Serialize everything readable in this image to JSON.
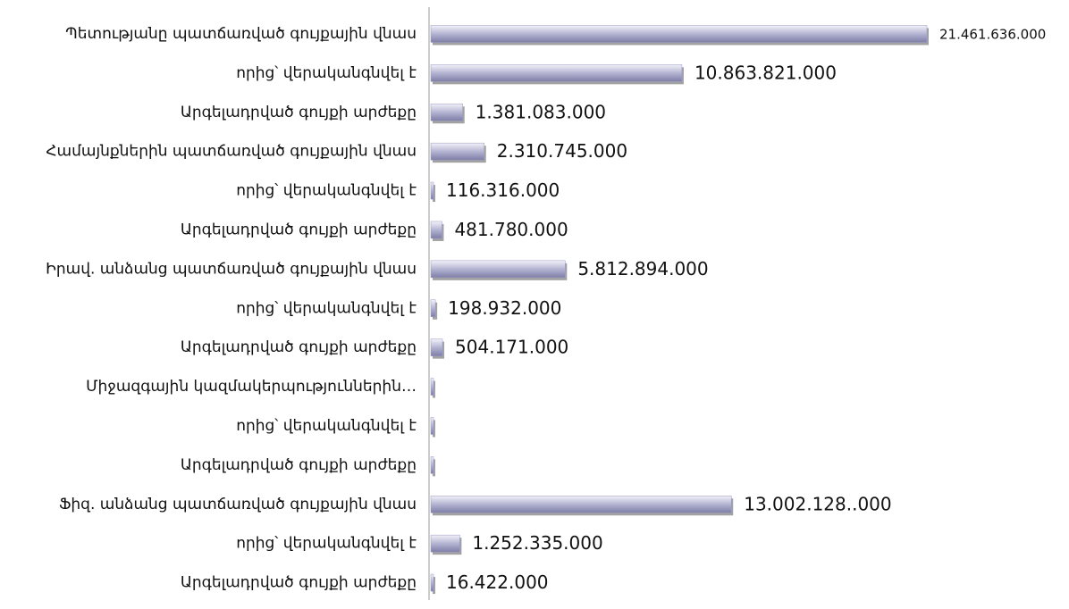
{
  "chart_data": {
    "type": "hbar",
    "categories": [
      "Պետությանը պատճառված գույքային վնաս",
      "որից՝ վերականգնվել է",
      "Արգելադրված գույքի արժեքը",
      "Համայնքներին պատճառված գույքային վնաս",
      "որից՝ վերականգնվել է",
      "Արգելադրված գույքի արժեքը",
      "Իրավ. անձանց պատճառված գույքային վնաս",
      "որից՝ վերականգնվել է",
      "Արգելադրված գույքի արժեքը",
      "Միջազգային կազմակերպություններին…",
      "որից՝ վերականգնվել է",
      "Արգելադրված գույքի արժեքը",
      "Ֆիզ. անձանց պատճառված գույքային վնաս",
      "որից՝ վերականգնվել է",
      "Արգելադրված գույքի արժեքը"
    ],
    "values": [
      21461636000,
      10863821000,
      1381083000,
      2310745000,
      116316000,
      481780000,
      5812894000,
      198932000,
      504171000,
      0,
      0,
      0,
      13002128000,
      1252335000,
      16422000
    ],
    "value_labels": [
      "21.461.636.000",
      "10.863.821.000",
      "1.381.083.000",
      "2.310.745.000",
      "116.316.000",
      "481.780.000",
      "5.812.894.000",
      "198.932.000",
      "504.171.000",
      null,
      null,
      null,
      "13.002.128..000",
      "1.252.335.000",
      "16.422.000"
    ],
    "color": "#9a9ac2"
  }
}
